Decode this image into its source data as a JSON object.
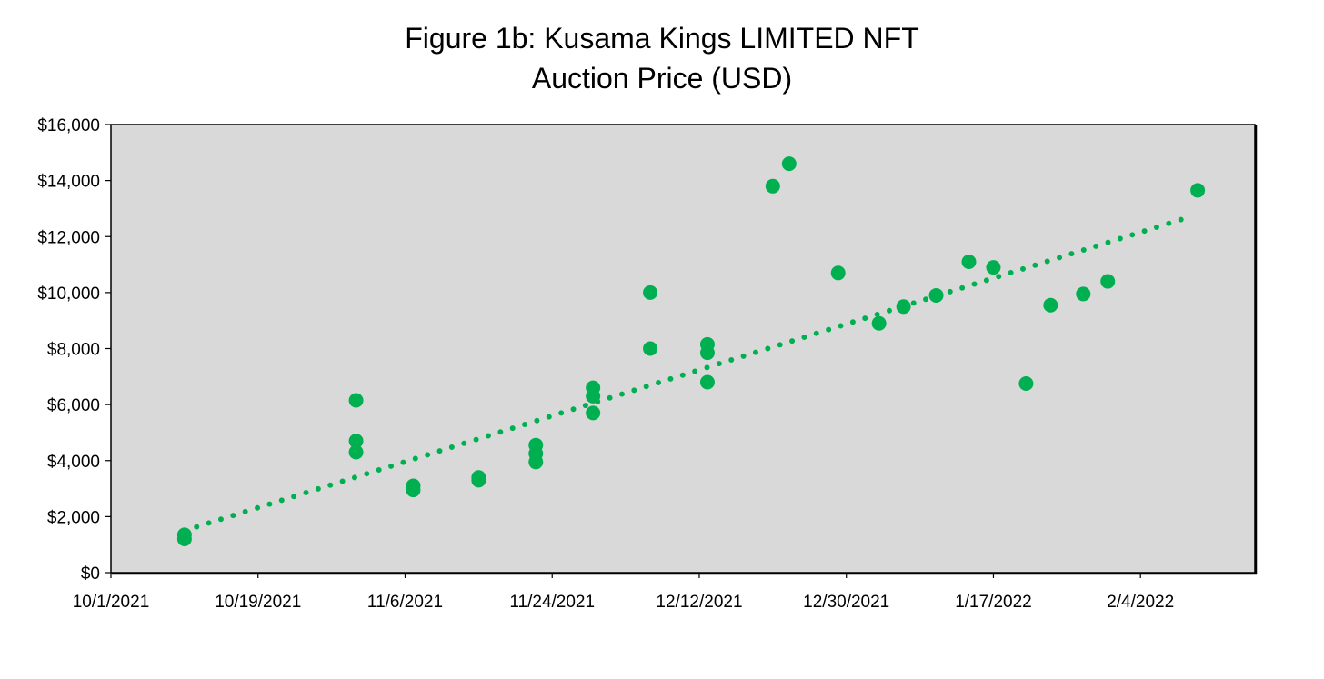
{
  "chart_data": {
    "type": "scatter",
    "title_lines": [
      "Figure 1b: Kusama Kings LIMITED NFT",
      "Auction Price (USD)"
    ],
    "xlabel": "",
    "ylabel": "",
    "x_axis": {
      "type": "date",
      "range": [
        "2021-10-01",
        "2022-02-18"
      ],
      "ticks": [
        {
          "date": "2021-10-01",
          "label": "10/1/2021"
        },
        {
          "date": "2021-10-19",
          "label": "10/19/2021"
        },
        {
          "date": "2021-11-06",
          "label": "11/6/2021"
        },
        {
          "date": "2021-11-24",
          "label": "11/24/2021"
        },
        {
          "date": "2021-12-12",
          "label": "12/12/2021"
        },
        {
          "date": "2021-12-30",
          "label": "12/30/2021"
        },
        {
          "date": "2022-01-17",
          "label": "1/17/2022"
        },
        {
          "date": "2022-02-04",
          "label": "2/4/2022"
        }
      ]
    },
    "y_axis": {
      "range": [
        0,
        16000
      ],
      "ticks": [
        {
          "value": 0,
          "label": "$0"
        },
        {
          "value": 2000,
          "label": "$2,000"
        },
        {
          "value": 4000,
          "label": "$4,000"
        },
        {
          "value": 6000,
          "label": "$6,000"
        },
        {
          "value": 8000,
          "label": "$8,000"
        },
        {
          "value": 10000,
          "label": "$10,000"
        },
        {
          "value": 12000,
          "label": "$12,000"
        },
        {
          "value": 14000,
          "label": "$14,000"
        },
        {
          "value": 16000,
          "label": "$16,000"
        }
      ]
    },
    "grid": false,
    "legend": "none",
    "plot_background": "#d9d9d9",
    "point_color": "#00b050",
    "trendline": {
      "kind": "linear",
      "style": "dotted",
      "color": "#00b050",
      "points": [
        {
          "x": "2021-10-10",
          "y": 1500
        },
        {
          "x": "2022-02-10",
          "y": 12700
        }
      ]
    },
    "series": [
      {
        "points": [
          {
            "x": "2021-10-10",
            "y": 1200
          },
          {
            "x": "2021-10-10",
            "y": 1350
          },
          {
            "x": "2021-10-31",
            "y": 6150
          },
          {
            "x": "2021-10-31",
            "y": 4700
          },
          {
            "x": "2021-10-31",
            "y": 4300
          },
          {
            "x": "2021-11-07",
            "y": 3100
          },
          {
            "x": "2021-11-07",
            "y": 2950
          },
          {
            "x": "2021-11-15",
            "y": 3400
          },
          {
            "x": "2021-11-15",
            "y": 3300
          },
          {
            "x": "2021-11-22",
            "y": 4550
          },
          {
            "x": "2021-11-22",
            "y": 4250
          },
          {
            "x": "2021-11-22",
            "y": 3950
          },
          {
            "x": "2021-11-29",
            "y": 6600
          },
          {
            "x": "2021-11-29",
            "y": 6300
          },
          {
            "x": "2021-11-29",
            "y": 5700
          },
          {
            "x": "2021-12-06",
            "y": 10000
          },
          {
            "x": "2021-12-06",
            "y": 8000
          },
          {
            "x": "2021-12-13",
            "y": 8150
          },
          {
            "x": "2021-12-13",
            "y": 7850
          },
          {
            "x": "2021-12-13",
            "y": 6800
          },
          {
            "x": "2021-12-21",
            "y": 13800
          },
          {
            "x": "2021-12-23",
            "y": 14600
          },
          {
            "x": "2021-12-29",
            "y": 10700
          },
          {
            "x": "2022-01-03",
            "y": 8900
          },
          {
            "x": "2022-01-06",
            "y": 9500
          },
          {
            "x": "2022-01-10",
            "y": 9900
          },
          {
            "x": "2022-01-14",
            "y": 11100
          },
          {
            "x": "2022-01-17",
            "y": 10900
          },
          {
            "x": "2022-01-21",
            "y": 6750
          },
          {
            "x": "2022-01-24",
            "y": 9550
          },
          {
            "x": "2022-01-28",
            "y": 9950
          },
          {
            "x": "2022-01-31",
            "y": 10400
          },
          {
            "x": "2022-02-11",
            "y": 13650
          }
        ]
      }
    ]
  }
}
